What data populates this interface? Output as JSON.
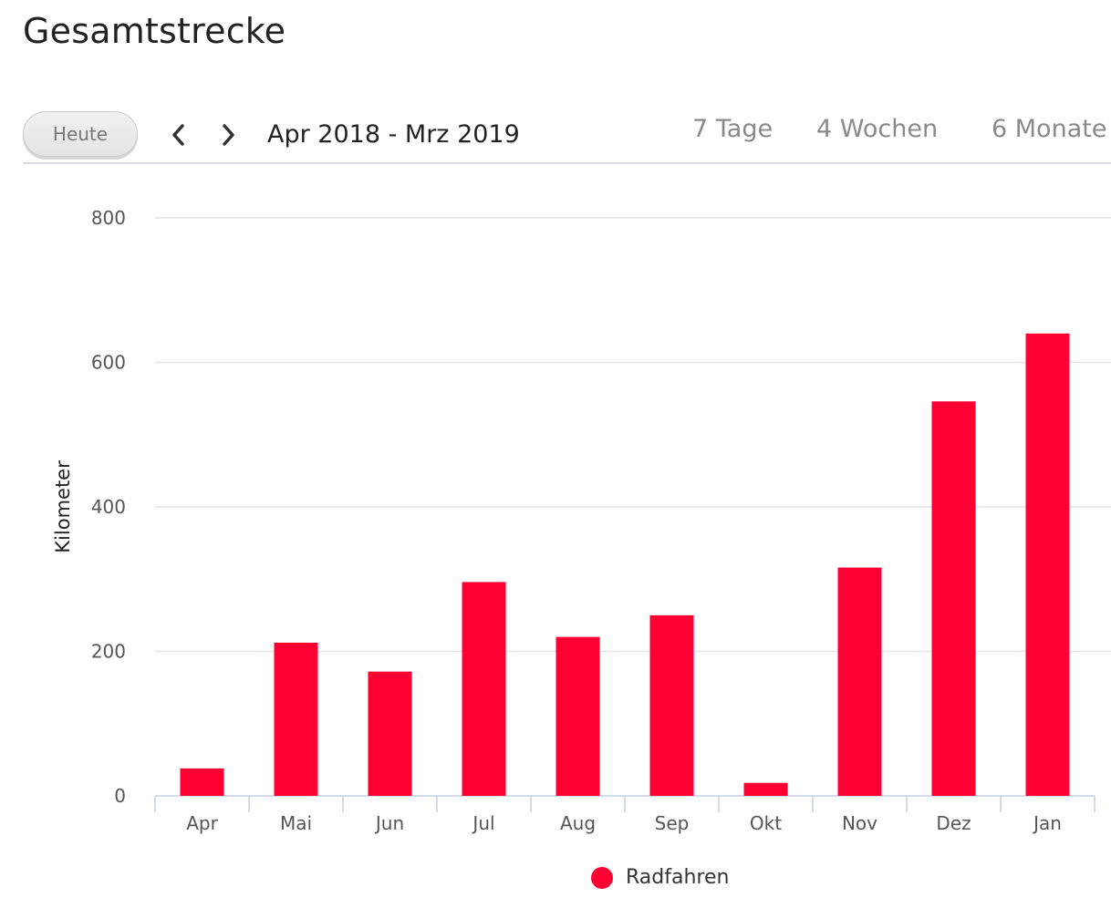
{
  "title": "Gesamtstrecke",
  "toolbar": {
    "today_label": "Heute",
    "prev_icon": "chevron-left-icon",
    "next_icon": "chevron-right-icon",
    "date_range": "Apr 2018 - Mrz 2019",
    "tabs": [
      "7 Tage",
      "4 Wochen",
      "6 Monate"
    ]
  },
  "colors": {
    "bar": "#ff0033",
    "grid": "#e2e4e8",
    "axis": "#c7d1e0",
    "tick_text": "#555555"
  },
  "chart_data": {
    "type": "bar",
    "categories": [
      "Apr",
      "Mai",
      "Jun",
      "Jul",
      "Aug",
      "Sep",
      "Okt",
      "Nov",
      "Dez",
      "Jan"
    ],
    "series": [
      {
        "name": "Radfahren",
        "values": [
          38,
          212,
          172,
          296,
          220,
          250,
          18,
          316,
          546,
          640
        ]
      }
    ],
    "ylabel": "Kilometer",
    "ylim": [
      0,
      800
    ],
    "yticks": [
      0,
      200,
      400,
      600,
      800
    ],
    "grid": true,
    "legend": "bottom-center"
  }
}
